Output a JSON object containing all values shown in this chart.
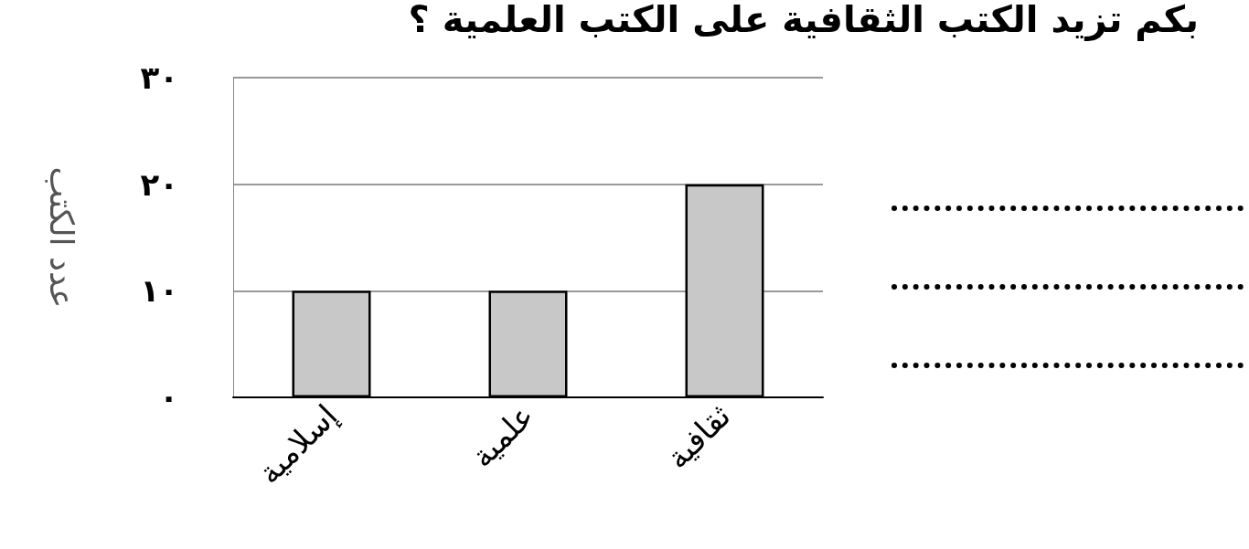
{
  "chart_data": {
    "type": "bar",
    "title": "بكم تزيد الكتب الثقافية على الكتب العلمية ؟",
    "ylabel": "عدد الكتب",
    "categories": [
      "إسلامية",
      "علمية",
      "ثقافية"
    ],
    "values": [
      10,
      10,
      20
    ],
    "color": "#c8c8c8",
    "ylim": [
      0,
      30
    ],
    "yticks": [
      {
        "value": 0,
        "label": "٠"
      },
      {
        "value": 10,
        "label": "١٠"
      },
      {
        "value": 20,
        "label": "٢٠"
      },
      {
        "value": 30,
        "label": "٣٠"
      }
    ],
    "grid": "y"
  }
}
